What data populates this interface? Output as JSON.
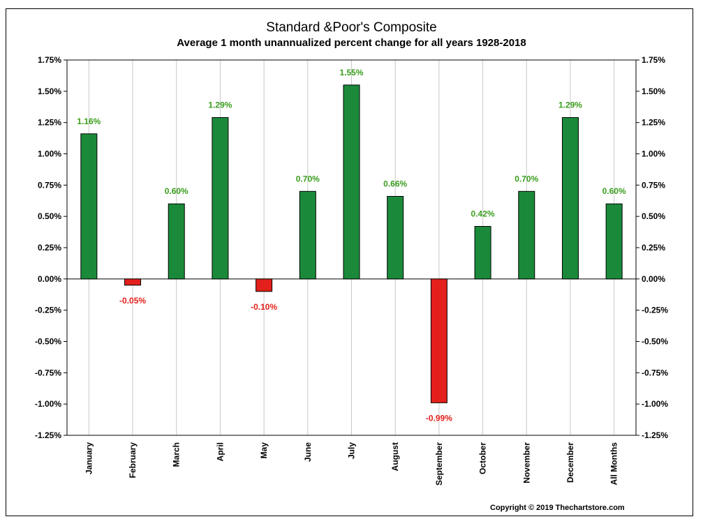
{
  "title": "Standard &Poor's Composite",
  "subtitle": "Average 1 month unannualized percent change for all years 1928-2018",
  "copyright": "Copyright © 2019 Thechartstore.com",
  "colors": {
    "positive": "#1a8a3a",
    "negative": "#e3201b",
    "positive_label": "#3a9d1e",
    "negative_label": "#e3201b",
    "grid": "#c8c8c8"
  },
  "chart_data": {
    "type": "bar",
    "categories": [
      "January",
      "February",
      "March",
      "April",
      "May",
      "June",
      "July",
      "August",
      "September",
      "October",
      "November",
      "December",
      "All Months"
    ],
    "values": [
      1.16,
      -0.05,
      0.6,
      1.29,
      -0.1,
      0.7,
      1.55,
      0.66,
      -0.99,
      0.42,
      0.7,
      1.29,
      0.6
    ],
    "value_labels": [
      "1.16%",
      "-0.05%",
      "0.60%",
      "1.29%",
      "-0.10%",
      "0.70%",
      "1.55%",
      "0.66%",
      "-0.99%",
      "0.42%",
      "0.70%",
      "1.29%",
      "0.60%"
    ],
    "title": "Standard &Poor's Composite",
    "subtitle": "Average 1 month unannualized percent change for all years 1928-2018",
    "xlabel": "",
    "ylabel": "",
    "ylim": [
      -1.25,
      1.75
    ],
    "yticks": [
      "1.75%",
      "1.50%",
      "1.25%",
      "1.00%",
      "0.75%",
      "0.50%",
      "0.25%",
      "0.00%",
      "-0.25%",
      "-0.50%",
      "-0.75%",
      "-1.00%",
      "-1.25%"
    ],
    "ytick_values": [
      1.75,
      1.5,
      1.25,
      1.0,
      0.75,
      0.5,
      0.25,
      0.0,
      -0.25,
      -0.5,
      -0.75,
      -1.0,
      -1.25
    ],
    "y_axis_both_sides": true,
    "grid": "vertical",
    "legend": "none"
  }
}
